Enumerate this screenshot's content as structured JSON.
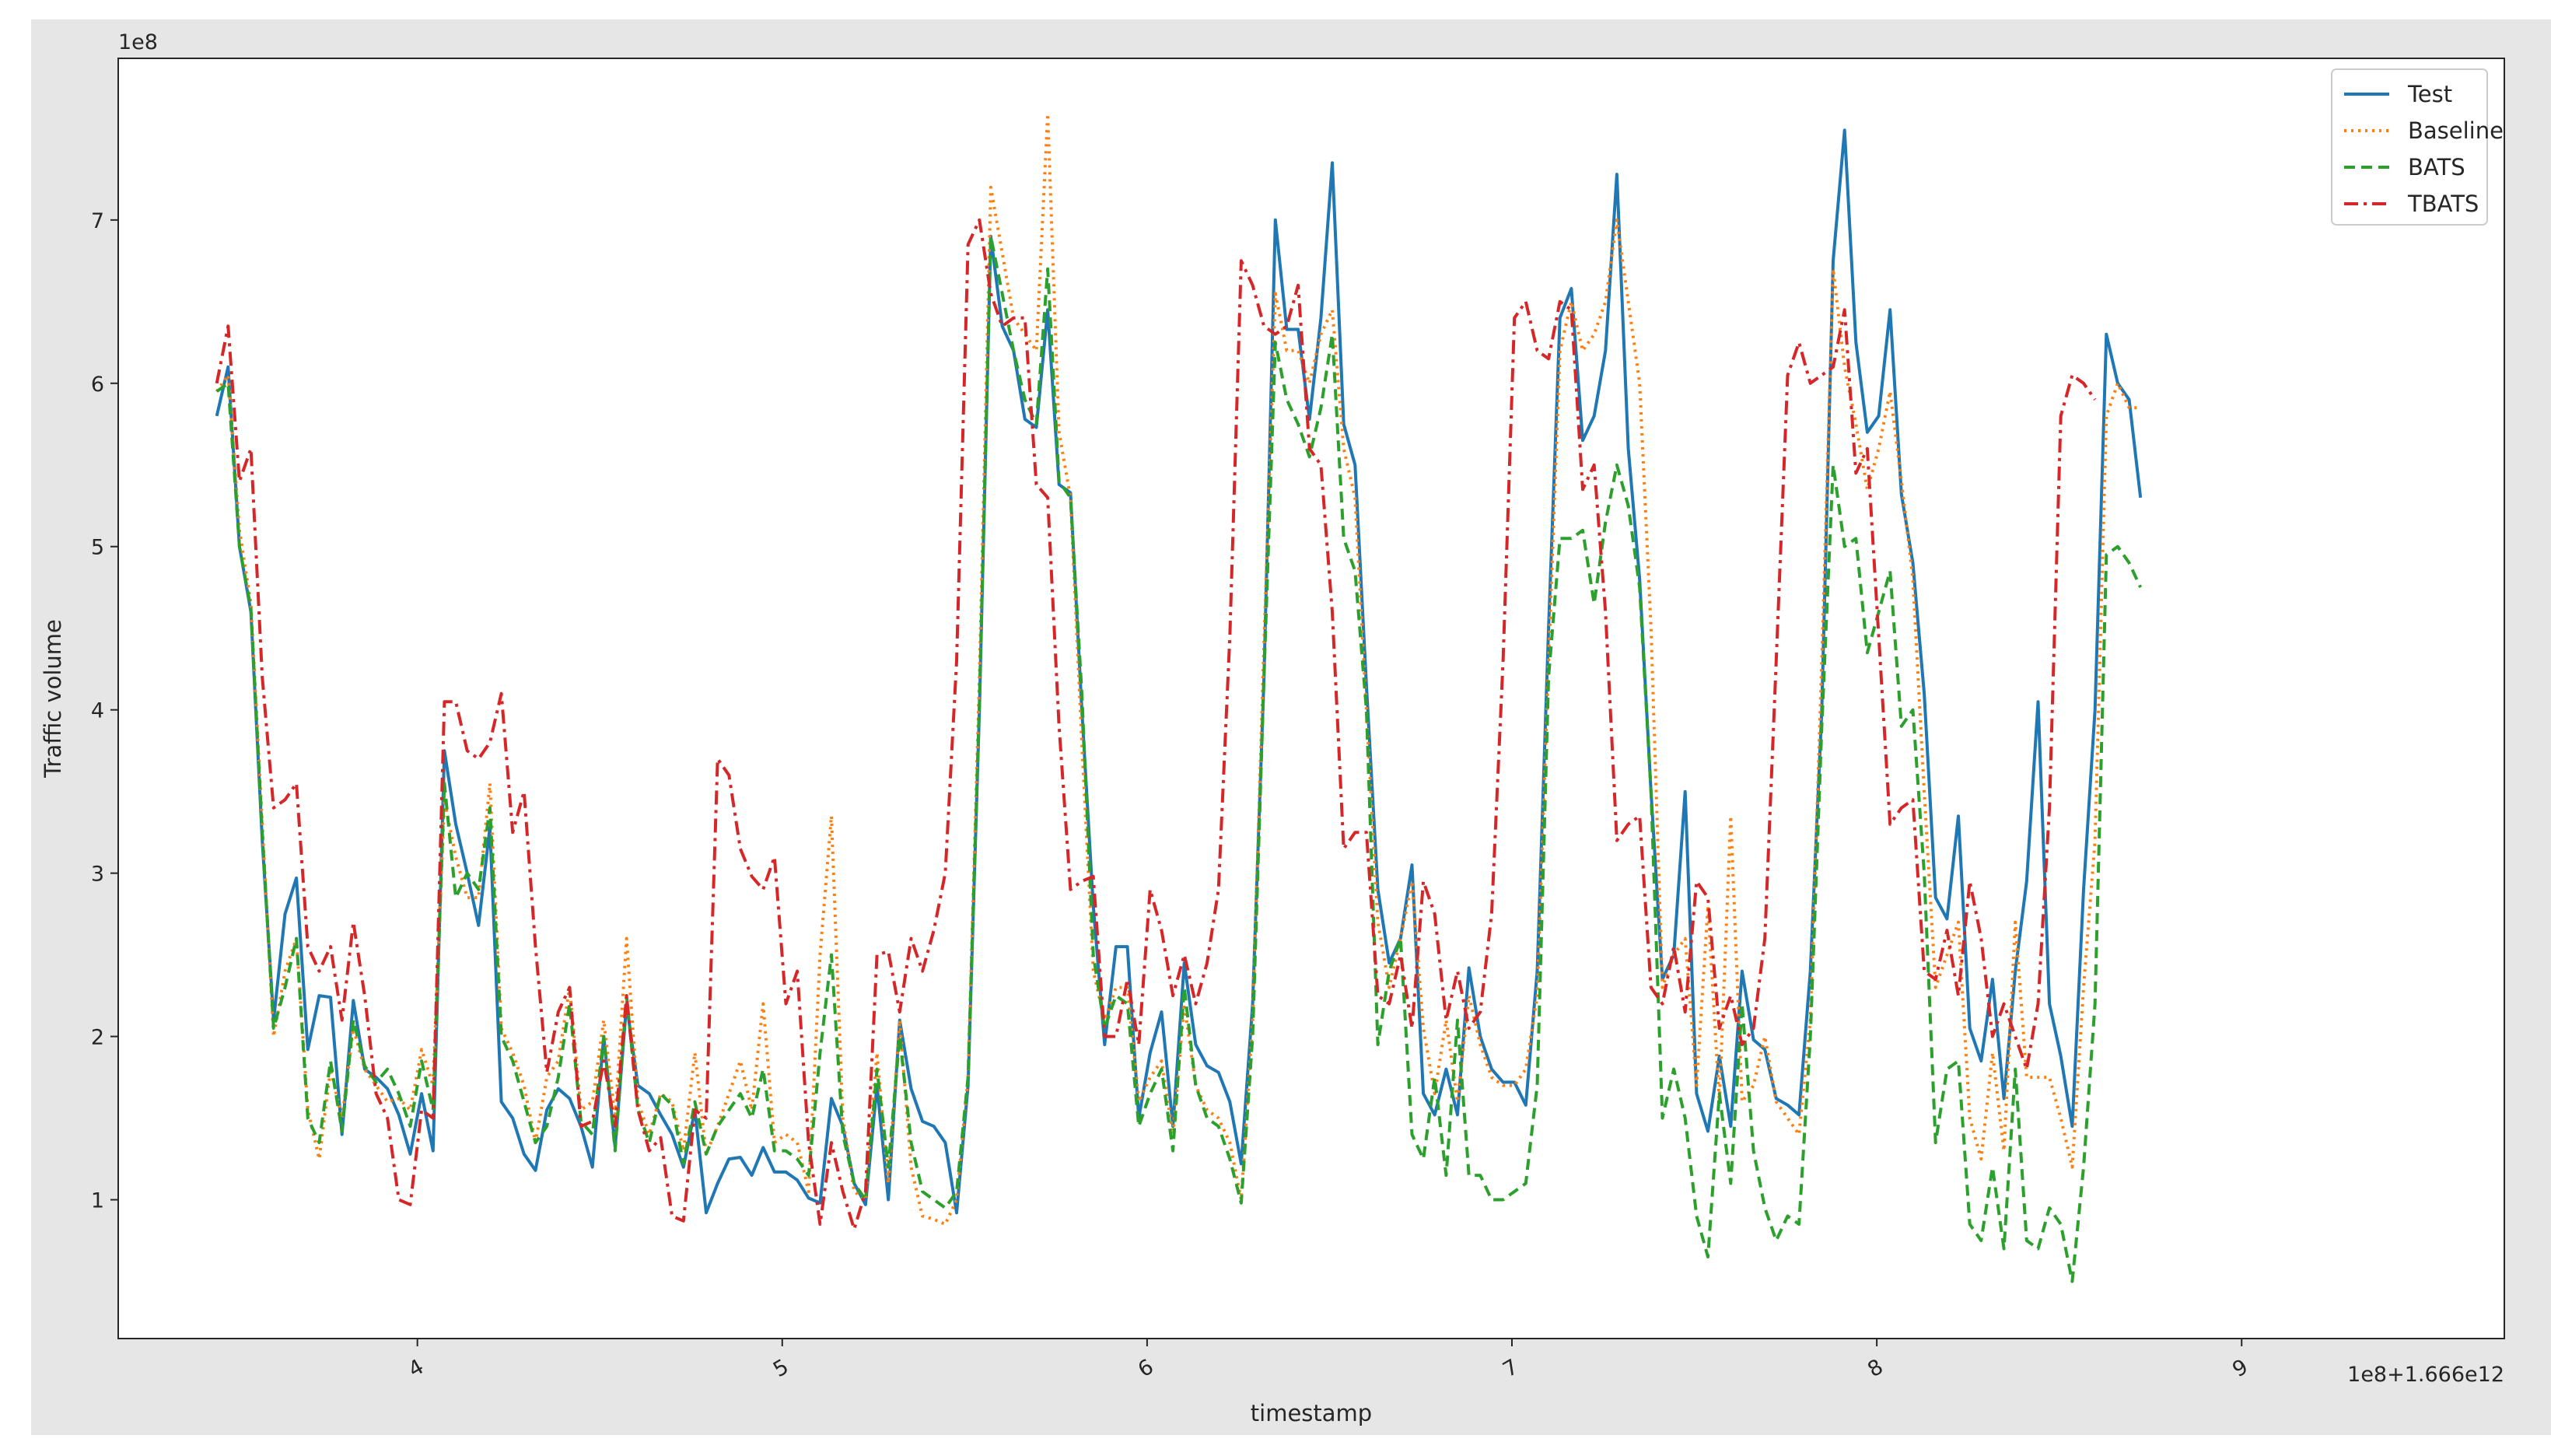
{
  "chart_data": {
    "type": "line",
    "xlabel": "timestamp",
    "ylabel": "Traffic volume",
    "y_multiplier_label": "1e8",
    "x_offset_label": "1e8+1.666e12",
    "x_ticks": [
      4,
      5,
      6,
      7,
      8,
      9
    ],
    "x_tick_labels": [
      "4",
      "5",
      "6",
      "7",
      "8",
      "9"
    ],
    "y_ticks": [
      1,
      2,
      3,
      4,
      5,
      6,
      7
    ],
    "y_tick_labels": [
      "1",
      "2",
      "3",
      "4",
      "5",
      "6",
      "7"
    ],
    "xlim": [
      3.18,
      9.72
    ],
    "ylim": [
      0.15,
      7.99
    ],
    "grid": false,
    "legend_position": "top-right",
    "x_start": 3.45,
    "x_step": 0.0312,
    "series": [
      {
        "name": "Test",
        "color": "#1f77b4",
        "dash": "solid",
        "values": [
          5.8,
          6.1,
          5.0,
          4.6,
          3.2,
          2.1,
          2.75,
          2.97,
          1.92,
          2.25,
          2.24,
          1.4,
          2.22,
          1.8,
          1.75,
          1.68,
          1.52,
          1.28,
          1.65,
          1.3,
          3.75,
          3.3,
          3.0,
          2.68,
          3.28,
          1.6,
          1.5,
          1.28,
          1.18,
          1.55,
          1.68,
          1.62,
          1.45,
          1.2,
          2.0,
          1.32,
          2.2,
          1.7,
          1.65,
          1.52,
          1.4,
          1.2,
          1.55,
          0.92,
          1.1,
          1.25,
          1.26,
          1.15,
          1.32,
          1.17,
          1.17,
          1.12,
          1.01,
          0.98,
          1.62,
          1.45,
          1.1,
          0.97,
          1.7,
          1.0,
          2.1,
          1.68,
          1.48,
          1.45,
          1.35,
          0.92,
          1.7,
          4.0,
          6.9,
          6.35,
          6.2,
          5.78,
          5.73,
          6.45,
          5.38,
          5.33,
          4.0,
          2.8,
          1.95,
          2.55,
          2.55,
          1.5,
          1.9,
          2.15,
          1.45,
          2.45,
          1.95,
          1.82,
          1.78,
          1.6,
          1.22,
          2.2,
          4.2,
          7.0,
          6.33,
          6.33,
          5.78,
          6.4,
          7.35,
          5.75,
          5.5,
          4.15,
          2.9,
          2.45,
          2.6,
          3.05,
          1.65,
          1.52,
          1.8,
          1.52,
          2.42,
          2.0,
          1.8,
          1.72,
          1.72,
          1.58,
          2.4,
          4.5,
          6.4,
          6.58,
          5.65,
          5.8,
          6.2,
          7.28,
          5.6,
          4.8,
          3.5,
          2.35,
          2.5,
          3.5,
          1.65,
          1.42,
          1.88,
          1.45,
          2.4,
          1.98,
          1.92,
          1.62,
          1.58,
          1.52,
          2.4,
          4.0,
          6.75,
          7.55,
          6.25,
          5.7,
          5.8,
          6.45,
          5.32,
          4.9,
          4.1,
          2.85,
          2.72,
          3.35,
          2.05,
          1.85,
          2.35,
          1.62,
          2.4,
          2.95,
          4.05,
          2.2,
          1.88,
          1.45,
          2.9,
          4.0,
          6.3,
          6.0,
          5.9,
          5.3
        ]
      },
      {
        "name": "Baseline",
        "color": "#ff7f0e",
        "dash": "dotted",
        "values": [
          5.95,
          6.05,
          5.1,
          4.65,
          3.3,
          2.0,
          2.4,
          2.6,
          1.55,
          1.25,
          1.8,
          1.5,
          2.05,
          1.8,
          1.7,
          1.6,
          1.62,
          1.55,
          1.92,
          1.7,
          3.45,
          3.1,
          2.85,
          2.85,
          3.55,
          2.05,
          1.9,
          1.7,
          1.35,
          1.75,
          1.85,
          2.3,
          1.55,
          1.6,
          2.1,
          1.5,
          2.6,
          1.6,
          1.4,
          1.65,
          1.6,
          1.3,
          1.9,
          1.28,
          1.45,
          1.65,
          1.85,
          1.55,
          2.2,
          1.35,
          1.4,
          1.35,
          1.05,
          2.5,
          3.35,
          1.5,
          1.05,
          1.0,
          1.9,
          1.1,
          2.1,
          1.2,
          0.9,
          0.88,
          0.85,
          1.0,
          1.75,
          4.2,
          7.2,
          6.8,
          6.4,
          6.3,
          6.2,
          7.65,
          5.7,
          5.3,
          3.8,
          2.4,
          2.1,
          2.3,
          2.3,
          1.6,
          1.75,
          1.85,
          1.4,
          2.2,
          1.7,
          1.55,
          1.5,
          1.35,
          1.0,
          2.1,
          4.4,
          6.55,
          6.2,
          6.2,
          6.0,
          6.3,
          6.45,
          5.6,
          5.3,
          4.0,
          2.7,
          2.3,
          2.6,
          2.95,
          2.05,
          1.65,
          2.1,
          1.6,
          2.25,
          1.95,
          1.75,
          1.7,
          1.7,
          1.8,
          2.25,
          4.3,
          6.2,
          6.5,
          6.2,
          6.3,
          6.5,
          7.0,
          6.5,
          6.0,
          4.5,
          2.3,
          2.5,
          2.6,
          1.7,
          2.8,
          1.6,
          3.35,
          1.6,
          1.7,
          2.0,
          1.6,
          1.5,
          1.4,
          2.1,
          4.3,
          6.7,
          6.1,
          5.75,
          5.35,
          5.6,
          5.95,
          5.4,
          4.8,
          3.5,
          2.3,
          2.5,
          2.7,
          1.5,
          1.25,
          1.9,
          1.3,
          2.7,
          1.75,
          1.75,
          1.75,
          1.5,
          1.2,
          2.3,
          3.2,
          5.8,
          6.0,
          5.85,
          5.85
        ]
      },
      {
        "name": "BATS",
        "color": "#2ca02c",
        "dash": "dashed",
        "values": [
          5.95,
          6.0,
          5.0,
          4.62,
          3.25,
          2.05,
          2.3,
          2.6,
          1.5,
          1.35,
          1.85,
          1.42,
          2.1,
          1.82,
          1.72,
          1.8,
          1.65,
          1.45,
          1.85,
          1.55,
          3.55,
          2.85,
          3.0,
          2.9,
          3.4,
          2.0,
          1.85,
          1.6,
          1.35,
          1.45,
          1.75,
          2.2,
          1.48,
          1.4,
          2.0,
          1.3,
          2.25,
          1.55,
          1.35,
          1.65,
          1.58,
          1.22,
          1.6,
          1.28,
          1.45,
          1.55,
          1.65,
          1.5,
          1.8,
          1.3,
          1.3,
          1.25,
          1.15,
          1.9,
          2.5,
          1.4,
          1.1,
          1.0,
          1.8,
          1.2,
          2.0,
          1.35,
          1.05,
          1.0,
          0.95,
          1.05,
          1.75,
          4.05,
          6.9,
          6.55,
          6.2,
          5.9,
          5.75,
          6.7,
          5.4,
          5.3,
          4.1,
          2.5,
          2.05,
          2.25,
          2.2,
          1.45,
          1.65,
          1.8,
          1.3,
          2.3,
          1.7,
          1.5,
          1.45,
          1.25,
          0.98,
          2.0,
          4.2,
          6.25,
          5.9,
          5.75,
          5.55,
          5.85,
          6.3,
          5.05,
          4.85,
          4.0,
          1.95,
          2.4,
          2.6,
          1.4,
          1.25,
          1.75,
          1.15,
          2.1,
          1.15,
          1.15,
          1.0,
          1.0,
          1.05,
          1.1,
          1.7,
          4.2,
          5.05,
          5.05,
          5.1,
          4.65,
          5.15,
          5.5,
          5.25,
          4.75,
          3.5,
          1.5,
          1.8,
          1.5,
          0.9,
          0.65,
          1.65,
          1.1,
          2.2,
          1.3,
          0.95,
          0.75,
          0.9,
          0.85,
          2.0,
          3.9,
          5.5,
          5.0,
          5.05,
          4.35,
          4.6,
          4.85,
          3.9,
          4.0,
          3.0,
          1.35,
          1.8,
          1.85,
          0.85,
          0.75,
          1.2,
          0.7,
          1.8,
          0.75,
          0.7,
          0.95,
          0.85,
          0.5,
          1.2,
          2.2,
          4.95,
          5.0,
          4.9,
          4.75
        ]
      },
      {
        "name": "TBATS",
        "color": "#d62728",
        "dash": "dashdot",
        "values": [
          6.0,
          6.35,
          5.4,
          5.6,
          4.2,
          3.4,
          3.45,
          3.55,
          2.55,
          2.4,
          2.55,
          2.1,
          2.7,
          2.25,
          1.65,
          1.5,
          1.0,
          0.97,
          1.55,
          1.5,
          4.05,
          4.05,
          3.75,
          3.7,
          3.8,
          4.1,
          3.25,
          3.5,
          2.55,
          1.78,
          2.15,
          2.3,
          1.45,
          1.48,
          1.85,
          1.45,
          2.25,
          1.55,
          1.3,
          1.38,
          0.9,
          0.87,
          1.55,
          1.5,
          3.7,
          3.6,
          3.15,
          2.98,
          2.9,
          3.1,
          2.2,
          2.4,
          1.35,
          0.85,
          1.35,
          1.05,
          0.82,
          1.05,
          2.5,
          2.52,
          2.15,
          2.6,
          2.4,
          2.65,
          3.0,
          4.3,
          6.85,
          7.0,
          6.55,
          6.35,
          6.4,
          6.4,
          5.38,
          5.3,
          3.9,
          2.9,
          2.95,
          2.98,
          2.0,
          2.0,
          2.35,
          1.95,
          2.9,
          2.65,
          2.25,
          2.5,
          2.2,
          2.45,
          2.9,
          4.45,
          6.75,
          6.6,
          6.35,
          6.3,
          6.35,
          6.6,
          5.6,
          5.5,
          4.6,
          3.15,
          3.25,
          3.25,
          2.25,
          2.2,
          2.5,
          2.05,
          2.95,
          2.75,
          2.1,
          2.4,
          2.05,
          2.15,
          2.75,
          4.3,
          6.4,
          6.5,
          6.2,
          6.15,
          6.5,
          6.45,
          5.35,
          5.5,
          4.6,
          3.2,
          3.3,
          3.35,
          2.3,
          2.2,
          2.55,
          2.15,
          2.95,
          2.85,
          2.05,
          2.25,
          1.95,
          2.05,
          2.6,
          4.3,
          6.05,
          6.25,
          6.0,
          6.05,
          6.1,
          6.45,
          5.45,
          5.6,
          4.45,
          3.3,
          3.4,
          3.45,
          2.4,
          2.35,
          2.65,
          2.25,
          2.95,
          2.6,
          2.0,
          2.2,
          2.0,
          1.8,
          2.2,
          3.4,
          5.8,
          6.05,
          6.0,
          5.9
        ]
      }
    ]
  }
}
